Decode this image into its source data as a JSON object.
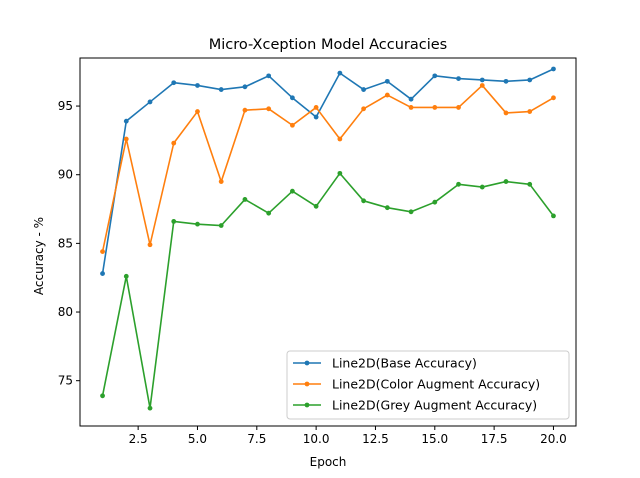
{
  "chart_data": {
    "type": "line",
    "title": "Micro-Xception Model Accuracies",
    "xlabel": "Epoch",
    "ylabel": "Accuracy - %",
    "xlim": [
      0.05,
      20.95
    ],
    "ylim": [
      71.7,
      98.5
    ],
    "xticks": [
      2.5,
      5.0,
      7.5,
      10.0,
      12.5,
      15.0,
      17.5,
      20.0
    ],
    "xtick_labels": [
      "2.5",
      "5.0",
      "7.5",
      "10.0",
      "12.5",
      "15.0",
      "17.5",
      "20.0"
    ],
    "yticks": [
      75,
      80,
      85,
      90,
      95
    ],
    "ytick_labels": [
      "75",
      "80",
      "85",
      "90",
      "95"
    ],
    "grid": false,
    "legend_position": "lower-right",
    "x": [
      1,
      2,
      3,
      4,
      5,
      6,
      7,
      8,
      9,
      10,
      11,
      12,
      13,
      14,
      15,
      16,
      17,
      18,
      19,
      20
    ],
    "series": [
      {
        "name": "Line2D(Base Accuracy)",
        "color": "#1f77b4",
        "values": [
          82.8,
          93.9,
          95.3,
          96.7,
          96.5,
          96.2,
          96.4,
          97.2,
          95.6,
          94.2,
          97.4,
          96.2,
          96.8,
          95.5,
          97.2,
          97.0,
          96.9,
          96.8,
          96.9,
          97.7
        ]
      },
      {
        "name": "Line2D(Color Augment Accuracy)",
        "color": "#ff7f0e",
        "values": [
          84.4,
          92.6,
          84.9,
          92.3,
          94.6,
          89.5,
          94.7,
          94.8,
          93.6,
          94.9,
          92.6,
          94.8,
          95.8,
          94.9,
          94.9,
          94.9,
          96.5,
          94.5,
          94.6,
          95.6
        ]
      },
      {
        "name": "Line2D(Grey Augment Accuracy)",
        "color": "#2ca02c",
        "values": [
          73.9,
          82.6,
          73.0,
          86.6,
          86.4,
          86.3,
          88.2,
          87.2,
          88.8,
          87.7,
          90.1,
          88.1,
          87.6,
          87.3,
          88.0,
          89.3,
          89.1,
          89.5,
          89.3,
          87.0
        ]
      }
    ]
  }
}
